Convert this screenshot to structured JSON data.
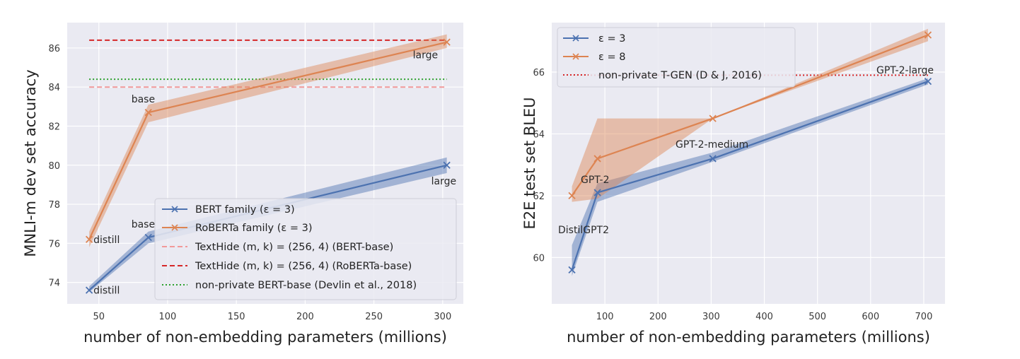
{
  "colors": {
    "background": "#eaeaf2",
    "grid": "#ffffff",
    "blue": "#4c72b0",
    "orange": "#dd8452",
    "pink_dash": "#f29999",
    "red_dash": "#d62728",
    "green_dot": "#2ca02c",
    "red_dot": "#d62728"
  },
  "chart_data": [
    {
      "type": "line",
      "xlabel": "number of non-embedding parameters (millions)",
      "ylabel": "MNLI-m dev set accuracy",
      "xlim": [
        27,
        315
      ],
      "ylim": [
        72.9,
        87.3
      ],
      "xticks": [
        "50",
        "100",
        "150",
        "200",
        "250",
        "300"
      ],
      "yticks": [
        "74",
        "76",
        "78",
        "80",
        "82",
        "84",
        "86"
      ],
      "series": [
        {
          "name": "BERT family (ε = 3)",
          "color": "blue",
          "marker": "x",
          "x": [
            43,
            86,
            303
          ],
          "y": [
            73.6,
            76.3,
            80.0
          ],
          "band_low": [
            73.5,
            76.0,
            79.6
          ],
          "band_high": [
            73.8,
            76.6,
            80.4
          ],
          "point_labels": [
            "distill",
            "base",
            "large"
          ]
        },
        {
          "name": "RoBERTa family (ε = 3)",
          "color": "orange",
          "marker": "x",
          "x": [
            43,
            86,
            303
          ],
          "y": [
            76.2,
            82.7,
            86.3
          ],
          "band_low": [
            75.8,
            82.2,
            86.0
          ],
          "band_high": [
            76.6,
            83.1,
            86.7
          ],
          "point_labels": [
            "distill",
            "base",
            "large"
          ]
        }
      ],
      "hlines": [
        {
          "name": "TextHide (m, k) = (256, 4) (BERT-base)",
          "y": 84.0,
          "style": "dashed",
          "color": "pink_dash"
        },
        {
          "name": "TextHide (m, k) = (256, 4) (RoBERTa-base)",
          "y": 86.4,
          "style": "dashed",
          "color": "red_dash"
        },
        {
          "name": "non-private BERT-base (Devlin et al., 2018)",
          "y": 84.4,
          "style": "dotted",
          "color": "green_dot"
        }
      ],
      "hline_xrange": [
        43,
        303
      ],
      "legend_position": "lower-right"
    },
    {
      "type": "line",
      "xlabel": "number of non-embedding parameters (millions)",
      "ylabel": "E2E test set BLEU",
      "xlim": [
        0,
        740
      ],
      "ylim": [
        58.5,
        67.6
      ],
      "xticks": [
        "100",
        "200",
        "300",
        "400",
        "500",
        "600",
        "700"
      ],
      "yticks": [
        "60",
        "62",
        "64",
        "66"
      ],
      "series": [
        {
          "name": "ε = 3",
          "color": "blue",
          "marker": "x",
          "x": [
            38,
            86,
            303,
            708
          ],
          "y": [
            59.6,
            62.1,
            63.2,
            65.7
          ],
          "band_low": [
            59.4,
            61.8,
            63.1,
            65.6
          ],
          "band_high": [
            60.4,
            62.4,
            63.4,
            65.8
          ]
        },
        {
          "name": "ε = 8",
          "color": "orange",
          "marker": "x",
          "x": [
            38,
            86,
            303,
            708
          ],
          "y": [
            62.0,
            63.2,
            64.5,
            67.2
          ],
          "band_low": [
            61.8,
            61.9,
            64.5,
            67.0
          ],
          "band_high": [
            62.3,
            64.5,
            64.5,
            67.4
          ]
        }
      ],
      "hlines": [
        {
          "name": "non-private T-GEN (D & J, 2016)",
          "y": 65.9,
          "style": "dotted",
          "color": "red_dot"
        }
      ],
      "hline_xrange": [
        40,
        708
      ],
      "point_labels": [
        "DistilGPT2",
        "GPT-2",
        "GPT-2-medium",
        "GPT-2-large"
      ],
      "legend_position": "upper-left"
    }
  ]
}
